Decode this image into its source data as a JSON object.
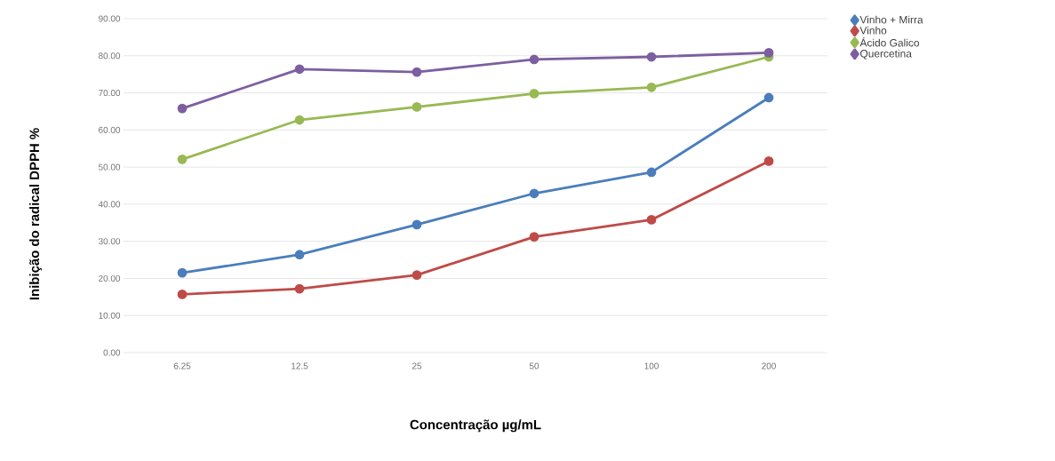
{
  "chart_data": {
    "type": "line",
    "xlabel": "Concentração µg/mL",
    "ylabel": "Inibição do radical DPPH %",
    "categories": [
      "6.25",
      "12.5",
      "25",
      "50",
      "100",
      "200"
    ],
    "series": [
      {
        "name": "Vinho + Mirra",
        "color": "#4a7ebb",
        "values": [
          21.5,
          26.4,
          34.5,
          42.9,
          48.6,
          68.7
        ]
      },
      {
        "name": "Vinho",
        "color": "#be4b48",
        "values": [
          15.7,
          17.2,
          20.9,
          31.2,
          35.8,
          51.6
        ]
      },
      {
        "name": "Ácido Galico",
        "color": "#98b954",
        "values": [
          52.1,
          62.7,
          66.2,
          69.8,
          71.5,
          79.7
        ]
      },
      {
        "name": "Quercetina",
        "color": "#7d5fa0",
        "values": [
          65.8,
          76.4,
          75.6,
          79.0,
          79.7,
          80.8
        ]
      }
    ],
    "ylim": [
      0,
      90
    ],
    "yticks": [
      {
        "value": 0,
        "label": "0.00"
      },
      {
        "value": 10,
        "label": "10.00"
      },
      {
        "value": 20,
        "label": "20.00"
      },
      {
        "value": 30,
        "label": "30.00"
      },
      {
        "value": 40,
        "label": "40.00"
      },
      {
        "value": 50,
        "label": "50.00"
      },
      {
        "value": 60,
        "label": "60.00"
      },
      {
        "value": 70,
        "label": "70.00"
      },
      {
        "value": 80,
        "label": "80.00"
      },
      {
        "value": 90,
        "label": "90.00"
      }
    ],
    "grid": "y",
    "legend": "top right",
    "marker": "circle",
    "line_style": "solid"
  }
}
